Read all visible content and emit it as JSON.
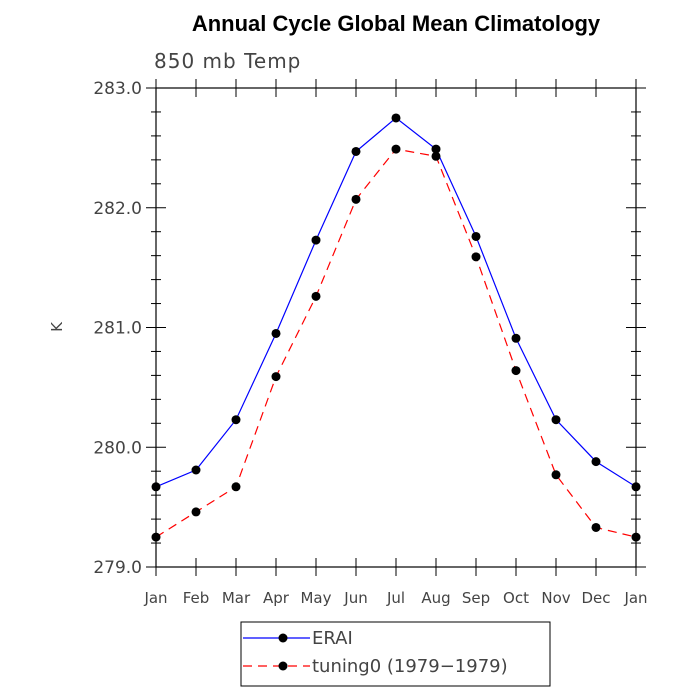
{
  "chart_data": {
    "type": "line",
    "title": "Annual Cycle Global Mean Climatology",
    "subtitle": "850 mb Temp",
    "xlabel": "",
    "ylabel": "K",
    "categories": [
      "Jan",
      "Feb",
      "Mar",
      "Apr",
      "May",
      "Jun",
      "Jul",
      "Aug",
      "Sep",
      "Oct",
      "Nov",
      "Dec",
      "Jan"
    ],
    "ylim": [
      279.0,
      283.0
    ],
    "yticks": [
      "279.0",
      "280.0",
      "281.0",
      "282.0",
      "283.0"
    ],
    "grid": false,
    "legend_placement": "bottom",
    "series": [
      {
        "name": "ERAI",
        "color": "#0000ff",
        "dash": "solid",
        "marker": "circle",
        "values": [
          279.67,
          279.81,
          280.23,
          280.95,
          281.73,
          282.47,
          282.75,
          282.49,
          281.76,
          280.91,
          280.23,
          279.88,
          279.67
        ]
      },
      {
        "name": "tuning0 (1979−1979)",
        "color": "#ff0000",
        "dash": "dashed",
        "marker": "circle",
        "values": [
          279.25,
          279.46,
          279.67,
          280.59,
          281.26,
          282.07,
          282.49,
          282.43,
          281.59,
          280.64,
          279.77,
          279.33,
          279.25
        ]
      }
    ]
  }
}
